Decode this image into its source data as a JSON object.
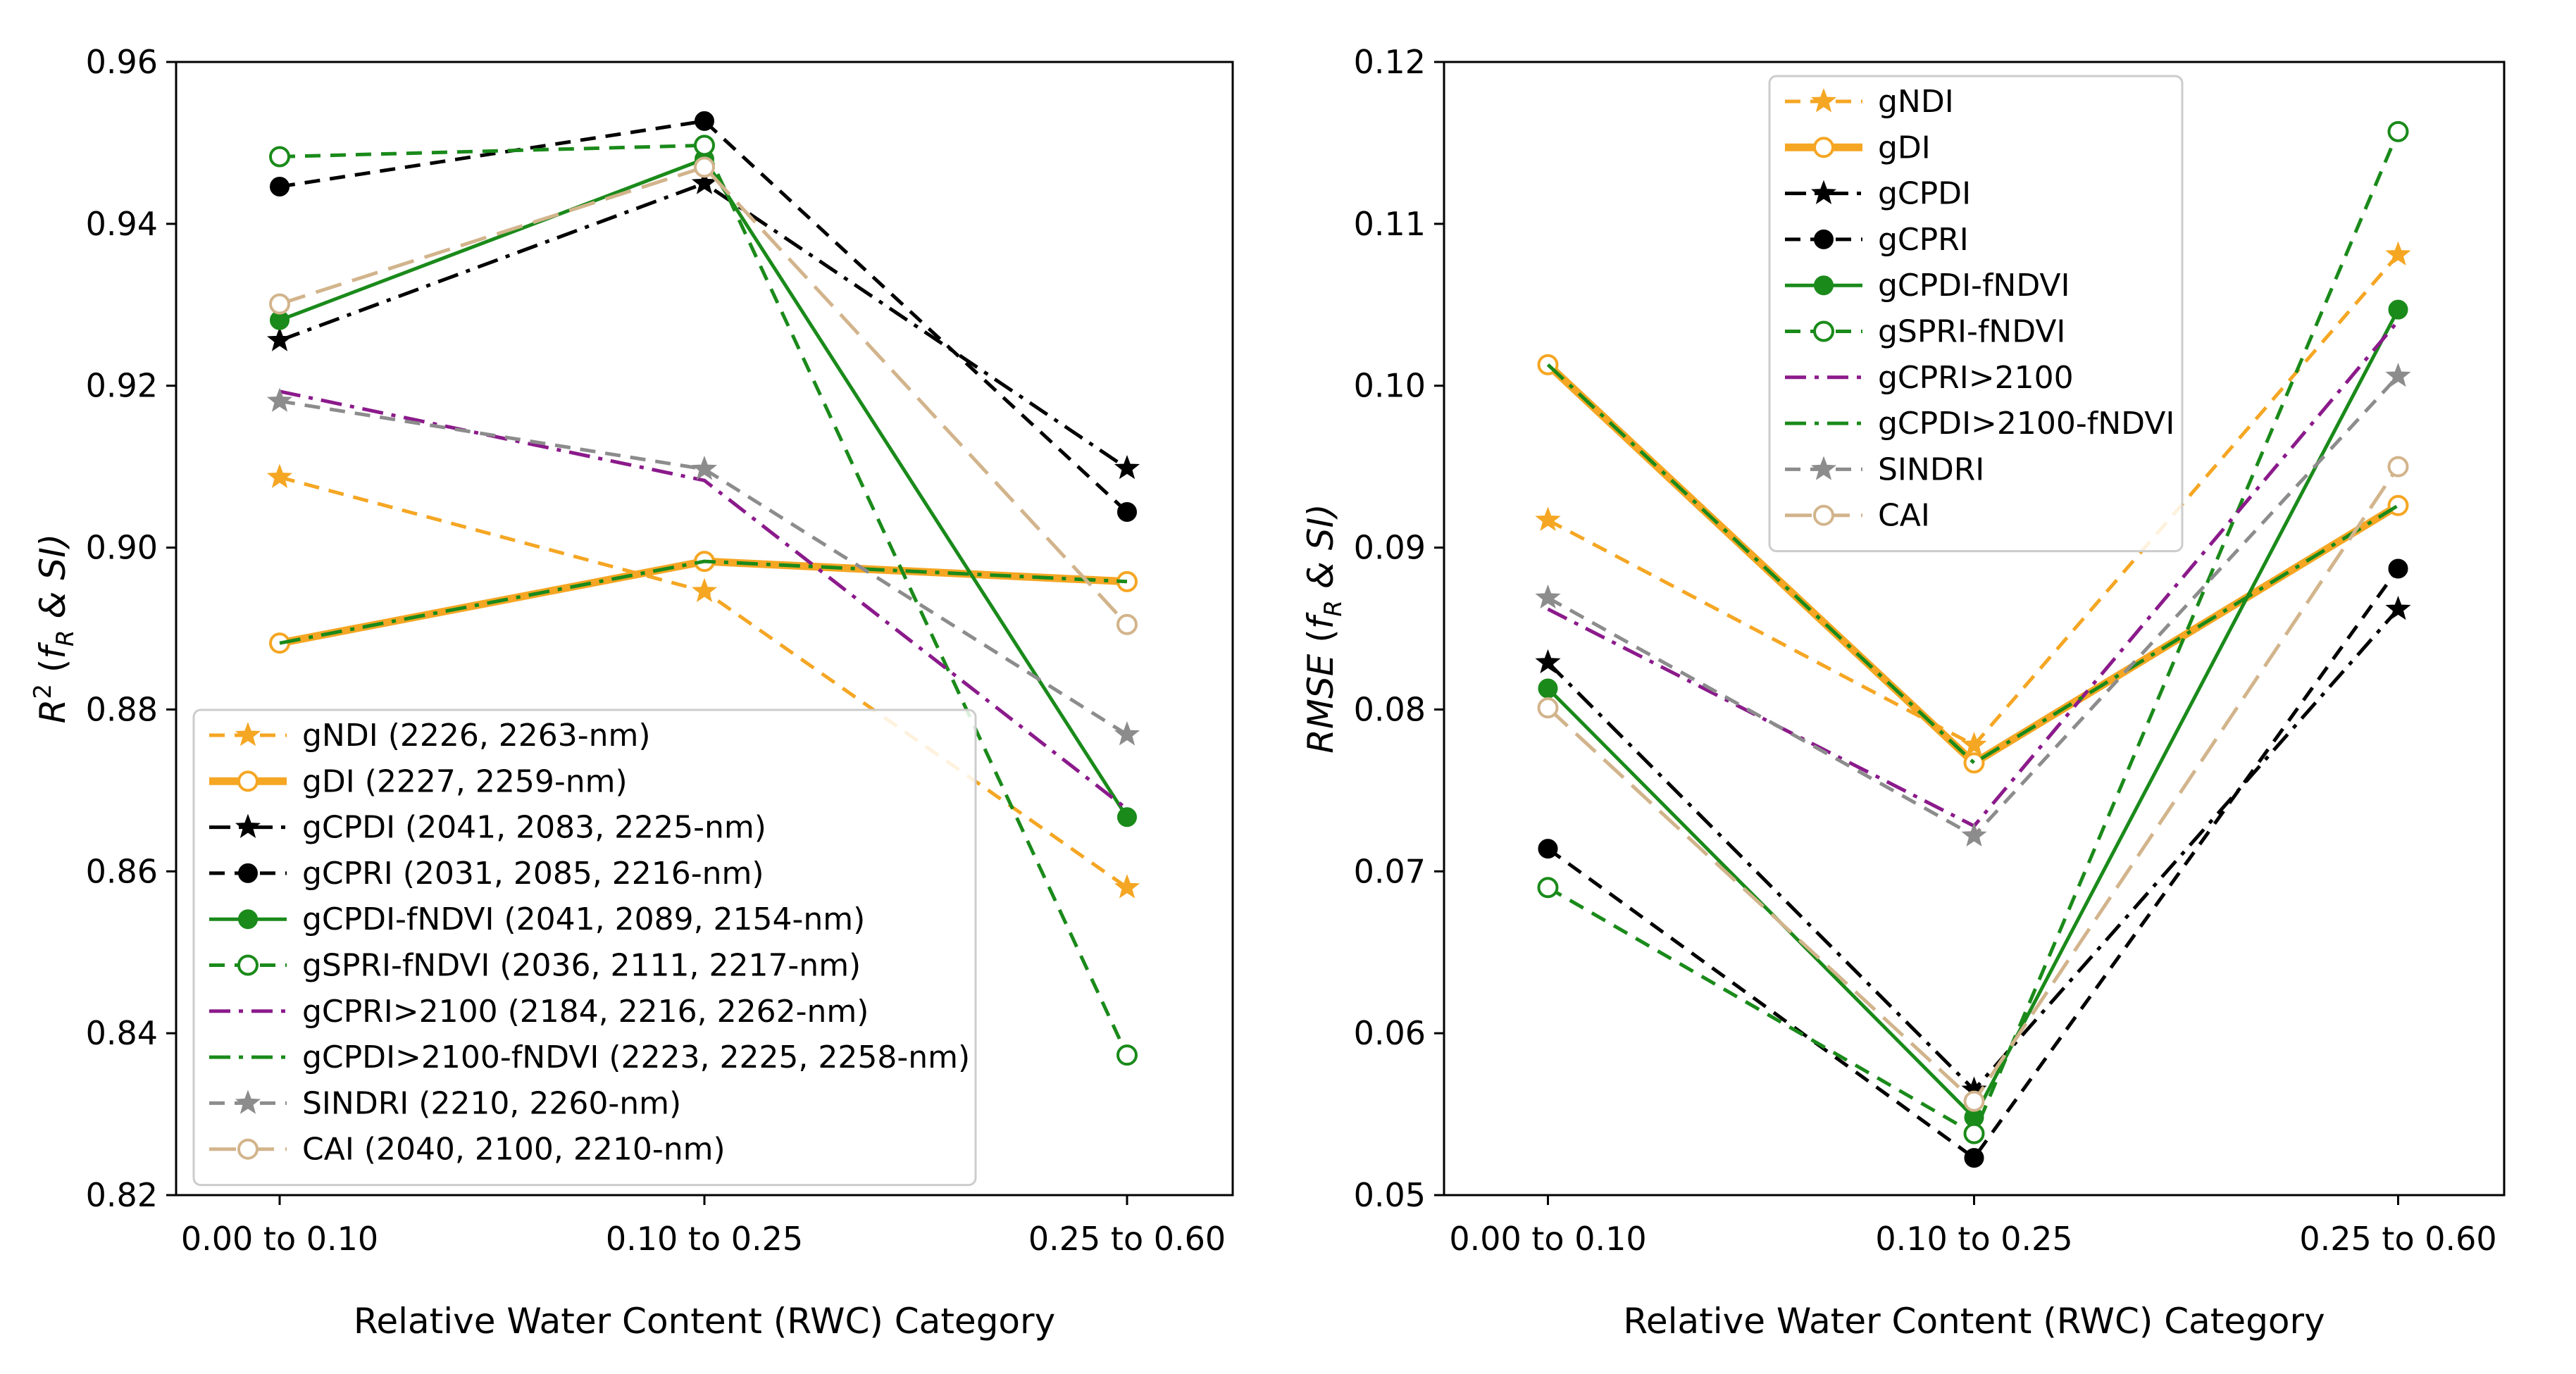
{
  "figure": {
    "panels": 2
  },
  "chart_data": [
    {
      "type": "line",
      "id": "r2",
      "xlabel": "Relative Water Content (RWC) Category",
      "ylabel": {
        "main": "R",
        "sup": "2",
        "paren_open": " (",
        "f": "f",
        "sub": "R",
        "rest": " & SI)"
      },
      "categories": [
        "0.00 to 0.10",
        "0.10 to 0.25",
        "0.25 to 0.60"
      ],
      "ylim": [
        0.82,
        0.96
      ],
      "yticks": [
        0.82,
        0.84,
        0.86,
        0.88,
        0.9,
        0.92,
        0.94,
        0.96
      ],
      "ytick_labels": [
        "0.82",
        "0.84",
        "0.86",
        "0.88",
        "0.90",
        "0.92",
        "0.94",
        "0.96"
      ],
      "legend_position": "bottom-left",
      "series": [
        {
          "key": "gNDI",
          "name": "gNDI (2226, 2263-nm)",
          "values": [
            0.9087,
            0.8946,
            0.858
          ],
          "color": "#f5a623",
          "dash": "dashed",
          "width": "normal",
          "marker": "star-filled"
        },
        {
          "key": "gDI",
          "name": "gDI (2227, 2259-nm)",
          "values": [
            0.8882,
            0.8983,
            0.8958
          ],
          "color": "#f5a623",
          "dash": "solid",
          "width": "thick",
          "marker": "circle-open"
        },
        {
          "key": "gCPDI",
          "name": "gCPDI (2041, 2083, 2225-nm)",
          "values": [
            0.9256,
            0.945,
            0.9098
          ],
          "color": "#000000",
          "dash": "dashdot",
          "width": "normal",
          "marker": "star-filled"
        },
        {
          "key": "gCPRI",
          "name": "gCPRI (2031, 2085, 2216-nm)",
          "values": [
            0.9446,
            0.9527,
            0.9044
          ],
          "color": "#000000",
          "dash": "dashed",
          "width": "normal",
          "marker": "circle-filled"
        },
        {
          "key": "gCPDI-fNDVI",
          "name": "gCPDI-fNDVI (2041, 2089, 2154-nm)",
          "values": [
            0.9281,
            0.948,
            0.8667
          ],
          "color": "#1a8a1a",
          "dash": "solid",
          "width": "normal",
          "marker": "circle-filled"
        },
        {
          "key": "gSPRI-fNDVI",
          "name": "gSPRI-fNDVI (2036, 2111, 2217-nm)",
          "values": [
            0.9483,
            0.9497,
            0.8373
          ],
          "color": "#1a8a1a",
          "dash": "dashed",
          "width": "normal",
          "marker": "circle-open"
        },
        {
          "key": "gCPRI>2100",
          "name": "gCPRI>2100 (2184, 2216, 2262-nm)",
          "values": [
            0.9193,
            0.9083,
            0.8677
          ],
          "color": "#8b1a8b",
          "dash": "dashdot",
          "width": "normal",
          "marker": "none"
        },
        {
          "key": "gCPDI>2100-fNDVI",
          "name": "gCPDI>2100-fNDVI (2223, 2225, 2258-nm)",
          "values": [
            0.8882,
            0.8983,
            0.8958
          ],
          "color": "#1a8a1a",
          "dash": "dashdot",
          "width": "normal",
          "marker": "none"
        },
        {
          "key": "SINDRI",
          "name": "SINDRI (2210, 2260-nm)",
          "values": [
            0.9181,
            0.9097,
            0.8769
          ],
          "color": "#8c8c8c",
          "dash": "dashed",
          "width": "normal",
          "marker": "star-filled"
        },
        {
          "key": "CAI",
          "name": "CAI (2040, 2100, 2210-nm)",
          "values": [
            0.9301,
            0.947,
            0.8905
          ],
          "color": "#d2b48c",
          "dash": "longdash",
          "width": "normal",
          "marker": "circle-open"
        }
      ]
    },
    {
      "type": "line",
      "id": "rmse",
      "xlabel": "Relative Water Content (RWC) Category",
      "ylabel": {
        "main": "RMSE",
        "sup": "",
        "paren_open": " (",
        "f": "f",
        "sub": "R",
        "rest": " & SI)"
      },
      "categories": [
        "0.00 to 0.10",
        "0.10 to 0.25",
        "0.25 to 0.60"
      ],
      "ylim": [
        0.05,
        0.12
      ],
      "yticks": [
        0.05,
        0.06,
        0.07,
        0.08,
        0.09,
        0.1,
        0.11,
        0.12
      ],
      "ytick_labels": [
        "0.05",
        "0.06",
        "0.07",
        "0.08",
        "0.09",
        "0.10",
        "0.11",
        "0.12"
      ],
      "legend_position": "top-center",
      "series": [
        {
          "key": "gNDI",
          "name": "gNDI",
          "values": [
            0.0917,
            0.0778,
            0.1081
          ],
          "color": "#f5a623",
          "dash": "dashed",
          "width": "normal",
          "marker": "star-filled"
        },
        {
          "key": "gDI",
          "name": "gDI",
          "values": [
            0.1013,
            0.0767,
            0.0926
          ],
          "color": "#f5a623",
          "dash": "solid",
          "width": "thick",
          "marker": "circle-open"
        },
        {
          "key": "gCPDI",
          "name": "gCPDI",
          "values": [
            0.0829,
            0.0565,
            0.0862
          ],
          "color": "#000000",
          "dash": "dashdot",
          "width": "normal",
          "marker": "star-filled"
        },
        {
          "key": "gCPRI",
          "name": "gCPRI",
          "values": [
            0.0714,
            0.0523,
            0.0887
          ],
          "color": "#000000",
          "dash": "dashed",
          "width": "normal",
          "marker": "circle-filled"
        },
        {
          "key": "gCPDI-fNDVI",
          "name": "gCPDI-fNDVI",
          "values": [
            0.0813,
            0.0548,
            0.1047
          ],
          "color": "#1a8a1a",
          "dash": "solid",
          "width": "normal",
          "marker": "circle-filled"
        },
        {
          "key": "gSPRI-fNDVI",
          "name": "gSPRI-fNDVI",
          "values": [
            0.069,
            0.0538,
            0.1157
          ],
          "color": "#1a8a1a",
          "dash": "dashed",
          "width": "normal",
          "marker": "circle-open"
        },
        {
          "key": "gCPRI>2100",
          "name": "gCPRI>2100",
          "values": [
            0.0862,
            0.0728,
            0.104
          ],
          "color": "#8b1a8b",
          "dash": "dashdot",
          "width": "normal",
          "marker": "none"
        },
        {
          "key": "gCPDI>2100-fNDVI",
          "name": "gCPDI>2100-fNDVI",
          "values": [
            0.1013,
            0.0767,
            0.0926
          ],
          "color": "#1a8a1a",
          "dash": "dashdot",
          "width": "normal",
          "marker": "none"
        },
        {
          "key": "SINDRI",
          "name": "SINDRI",
          "values": [
            0.0869,
            0.0722,
            0.1006
          ],
          "color": "#8c8c8c",
          "dash": "dashed",
          "width": "normal",
          "marker": "star-filled"
        },
        {
          "key": "CAI",
          "name": "CAI",
          "values": [
            0.0801,
            0.0558,
            0.095
          ],
          "color": "#d2b48c",
          "dash": "longdash",
          "width": "normal",
          "marker": "circle-open"
        }
      ]
    }
  ]
}
